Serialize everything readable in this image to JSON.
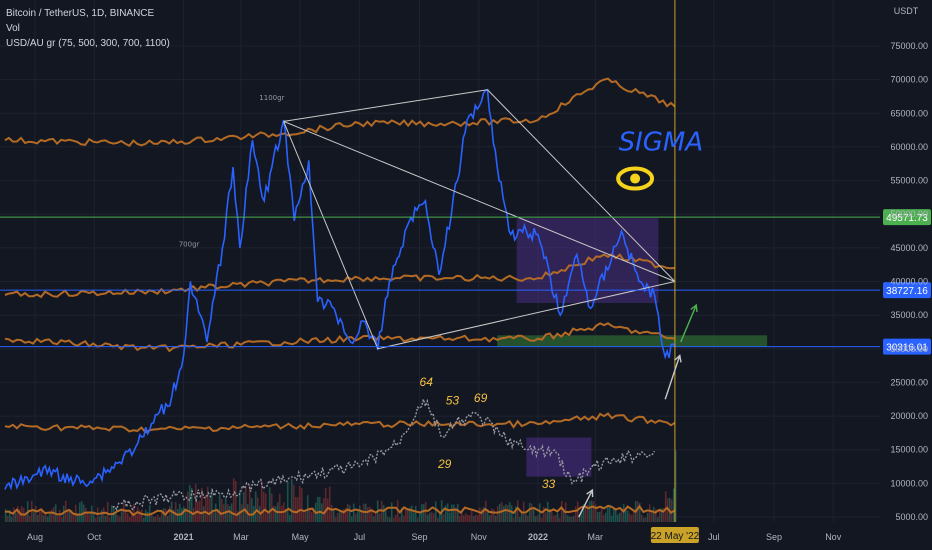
{
  "legend": {
    "symbol_line": "Bitcoin / TetherUS, 1D, BINANCE",
    "vol_line": "Vol",
    "indicator_line": "USD/AU gr (75, 500, 300, 700, 1100)"
  },
  "chart_data": {
    "type": "line",
    "title": "Bitcoin / TetherUS, 1D, BINANCE",
    "y_axis_unit": "USDT",
    "ylim": [
      4000,
      80000
    ],
    "x_range": [
      "2020-07-01",
      "2022-12-01"
    ],
    "x_ticks": [
      {
        "label": "Aug",
        "x": "2020-08-01"
      },
      {
        "label": "Oct",
        "x": "2020-10-01"
      },
      {
        "label": "2021",
        "x": "2021-01-01"
      },
      {
        "label": "Mar",
        "x": "2021-03-01"
      },
      {
        "label": "May",
        "x": "2021-05-01"
      },
      {
        "label": "Jul",
        "x": "2021-07-01"
      },
      {
        "label": "Sep",
        "x": "2021-09-01"
      },
      {
        "label": "Nov",
        "x": "2021-11-01"
      },
      {
        "label": "2022",
        "x": "2022-01-01"
      },
      {
        "label": "Mar",
        "x": "2022-03-01"
      },
      {
        "label": "Jul",
        "x": "2022-07-01"
      },
      {
        "label": "Sep",
        "x": "2022-09-01"
      },
      {
        "label": "Nov",
        "x": "2022-11-01"
      }
    ],
    "y_ticks": [
      75000,
      70000,
      65000,
      60000,
      55000,
      50000,
      45000,
      40000,
      35000,
      30000,
      25000,
      20000,
      15000,
      10000,
      5000
    ],
    "price_series": {
      "color": "#2962ff",
      "points": [
        [
          "2020-07-01",
          9100
        ],
        [
          "2020-08-01",
          11300
        ],
        [
          "2020-08-20",
          12000
        ],
        [
          "2020-09-05",
          10300
        ],
        [
          "2020-10-01",
          10700
        ],
        [
          "2020-10-25",
          13000
        ],
        [
          "2020-11-15",
          16000
        ],
        [
          "2020-12-01",
          19000
        ],
        [
          "2020-12-20",
          23000
        ],
        [
          "2021-01-01",
          29000
        ],
        [
          "2021-01-08",
          40000
        ],
        [
          "2021-01-25",
          31000
        ],
        [
          "2021-02-10",
          45000
        ],
        [
          "2021-02-21",
          57000
        ],
        [
          "2021-02-28",
          45000
        ],
        [
          "2021-03-13",
          61000
        ],
        [
          "2021-03-25",
          52000
        ],
        [
          "2021-04-14",
          64000
        ],
        [
          "2021-04-25",
          49000
        ],
        [
          "2021-05-10",
          58000
        ],
        [
          "2021-05-19",
          37000
        ],
        [
          "2021-06-05",
          36000
        ],
        [
          "2021-06-22",
          31000
        ],
        [
          "2021-07-07",
          34000
        ],
        [
          "2021-07-20",
          29800
        ],
        [
          "2021-08-01",
          40000
        ],
        [
          "2021-08-23",
          49500
        ],
        [
          "2021-09-07",
          52000
        ],
        [
          "2021-09-21",
          41000
        ],
        [
          "2021-10-10",
          55000
        ],
        [
          "2021-10-20",
          64000
        ],
        [
          "2021-11-10",
          68500
        ],
        [
          "2021-11-20",
          57000
        ],
        [
          "2021-12-04",
          47000
        ],
        [
          "2021-12-20",
          47500
        ],
        [
          "2022-01-01",
          47000
        ],
        [
          "2022-01-24",
          35000
        ],
        [
          "2022-02-10",
          44000
        ],
        [
          "2022-02-24",
          36000
        ],
        [
          "2022-03-28",
          47500
        ],
        [
          "2022-04-15",
          40000
        ],
        [
          "2022-05-01",
          38000
        ],
        [
          "2022-05-09",
          30500
        ],
        [
          "2022-05-12",
          28800
        ],
        [
          "2022-05-22",
          30316
        ]
      ]
    },
    "gold_ratio_lines": {
      "color": "#b36a24",
      "lines": [
        {
          "label": "1100gr",
          "points": [
            [
              "2020-07-01",
              61000
            ],
            [
              "2020-12-01",
              60500
            ],
            [
              "2021-04-15",
              62000
            ],
            [
              "2021-07-01",
              63500
            ],
            [
              "2021-10-01",
              63500
            ],
            [
              "2022-01-01",
              64000
            ],
            [
              "2022-03-10",
              70000
            ],
            [
              "2022-05-22",
              66000
            ]
          ]
        },
        {
          "label": "700gr",
          "points": [
            [
              "2020-07-01",
              38000
            ],
            [
              "2020-12-01",
              38500
            ],
            [
              "2021-04-15",
              40000
            ],
            [
              "2021-07-01",
              40500
            ],
            [
              "2021-10-01",
              40500
            ],
            [
              "2022-01-01",
              40500
            ],
            [
              "2022-03-10",
              44000
            ],
            [
              "2022-05-22",
              42000
            ]
          ]
        },
        {
          "points": [
            [
              "2020-07-01",
              31500
            ],
            [
              "2020-12-01",
              30000
            ],
            [
              "2021-04-15",
              31000
            ],
            [
              "2021-07-01",
              31500
            ],
            [
              "2021-10-01",
              31500
            ],
            [
              "2022-01-01",
              31500
            ],
            [
              "2022-03-10",
              33500
            ],
            [
              "2022-05-22",
              31500
            ]
          ]
        },
        {
          "points": [
            [
              "2020-07-01",
              18500
            ],
            [
              "2020-12-01",
              18000
            ],
            [
              "2021-04-15",
              18500
            ],
            [
              "2021-07-01",
              18800
            ],
            [
              "2021-10-01",
              18800
            ],
            [
              "2022-01-01",
              18800
            ],
            [
              "2022-03-10",
              20000
            ],
            [
              "2022-05-22",
              19000
            ]
          ]
        },
        {
          "points": [
            [
              "2020-07-01",
              5800
            ],
            [
              "2020-12-01",
              5600
            ],
            [
              "2021-04-15",
              5800
            ],
            [
              "2021-07-01",
              6000
            ],
            [
              "2021-10-01",
              6000
            ],
            [
              "2022-01-01",
              6000
            ],
            [
              "2022-03-10",
              6300
            ],
            [
              "2022-05-22",
              6000
            ]
          ]
        }
      ]
    },
    "secondary_series": {
      "color": "#9598a1",
      "points": [
        [
          "2020-10-20",
          6500
        ],
        [
          "2020-12-20",
          8000
        ],
        [
          "2021-02-10",
          8500
        ],
        [
          "2021-04-01",
          10000
        ],
        [
          "2021-05-20",
          11500
        ],
        [
          "2021-07-01",
          12500
        ],
        [
          "2021-08-10",
          16000
        ],
        [
          "2021-09-05",
          22500
        ],
        [
          "2021-09-25",
          17000
        ],
        [
          "2021-10-15",
          19500
        ],
        [
          "2021-11-01",
          20000
        ],
        [
          "2021-11-25",
          17000
        ],
        [
          "2021-12-20",
          15000
        ],
        [
          "2022-01-20",
          14500
        ],
        [
          "2022-02-05",
          10000
        ],
        [
          "2022-03-01",
          12500
        ],
        [
          "2022-03-25",
          13500
        ],
        [
          "2022-04-20",
          14500
        ],
        [
          "2022-05-01",
          14800
        ]
      ],
      "labels": [
        {
          "text": "64",
          "x": "2021-09-01",
          "y": 24500
        },
        {
          "text": "53",
          "x": "2021-09-28",
          "y": 21700
        },
        {
          "text": "69",
          "x": "2021-10-27",
          "y": 22100
        },
        {
          "text": "29",
          "x": "2021-09-20",
          "y": 12300
        },
        {
          "text": "33",
          "x": "2022-01-05",
          "y": 9300
        }
      ]
    },
    "trend_lines": [
      {
        "from": [
          "2021-04-14",
          63800
        ],
        "to": [
          "2021-11-10",
          68500
        ]
      },
      {
        "from": [
          "2021-04-14",
          63800
        ],
        "to": [
          "2022-05-22",
          40000
        ]
      },
      {
        "from": [
          "2021-11-10",
          68500
        ],
        "to": [
          "2022-05-22",
          40000
        ]
      },
      {
        "from": [
          "2021-04-14",
          63800
        ],
        "to": [
          "2021-07-20",
          30000
        ]
      },
      {
        "from": [
          "2021-07-20",
          30000
        ],
        "to": [
          "2022-05-22",
          40000
        ]
      }
    ],
    "zones": [
      {
        "x1": "2021-12-10",
        "x2": "2022-05-05",
        "y1": 36800,
        "y2": 49400,
        "fill": "#673ab7",
        "opacity": 0.35
      },
      {
        "x1": "2021-12-20",
        "x2": "2022-02-25",
        "y1": 11000,
        "y2": 16800,
        "fill": "#673ab7",
        "opacity": 0.4
      },
      {
        "x1": "2021-11-20",
        "x2": "2022-08-25",
        "y1": 30300,
        "y2": 32000,
        "fill": "#2f6b32",
        "opacity": 0.7
      }
    ],
    "horizontal_levels": [
      {
        "value": 49571.73,
        "label": "49571.73",
        "color": "#4caf50"
      },
      {
        "value": 38727.16,
        "label": "38727.16",
        "color": "#2962ff"
      },
      {
        "value": 30316.01,
        "label": "30316.01",
        "color": "#2962ff"
      }
    ],
    "vertical_marker": {
      "x": "2022-05-22",
      "label": "22 May '22",
      "color": "#c9a227"
    },
    "annotations": [
      {
        "text": "SIGMA",
        "x": "2022-03-25",
        "y": 59500
      },
      {
        "text": "1100gr",
        "x": "2021-03-20",
        "y": 67000
      },
      {
        "text": "700gr",
        "x": "2020-12-27",
        "y": 45200
      }
    ],
    "arrows": [
      {
        "from": [
          "2022-05-12",
          22500
        ],
        "to": [
          "2022-05-27",
          29000
        ],
        "color": "#c8c8c8"
      },
      {
        "from": [
          "2022-05-28",
          31000
        ],
        "to": [
          "2022-06-13",
          36500
        ],
        "color": "#4caf50"
      },
      {
        "from": [
          "2022-02-12",
          5000
        ],
        "to": [
          "2022-02-26",
          9000
        ],
        "color": "#c8c8c8"
      }
    ],
    "volume_bars_note": "volume histogram along bottom",
    "volume": {
      "max": 100
    }
  }
}
